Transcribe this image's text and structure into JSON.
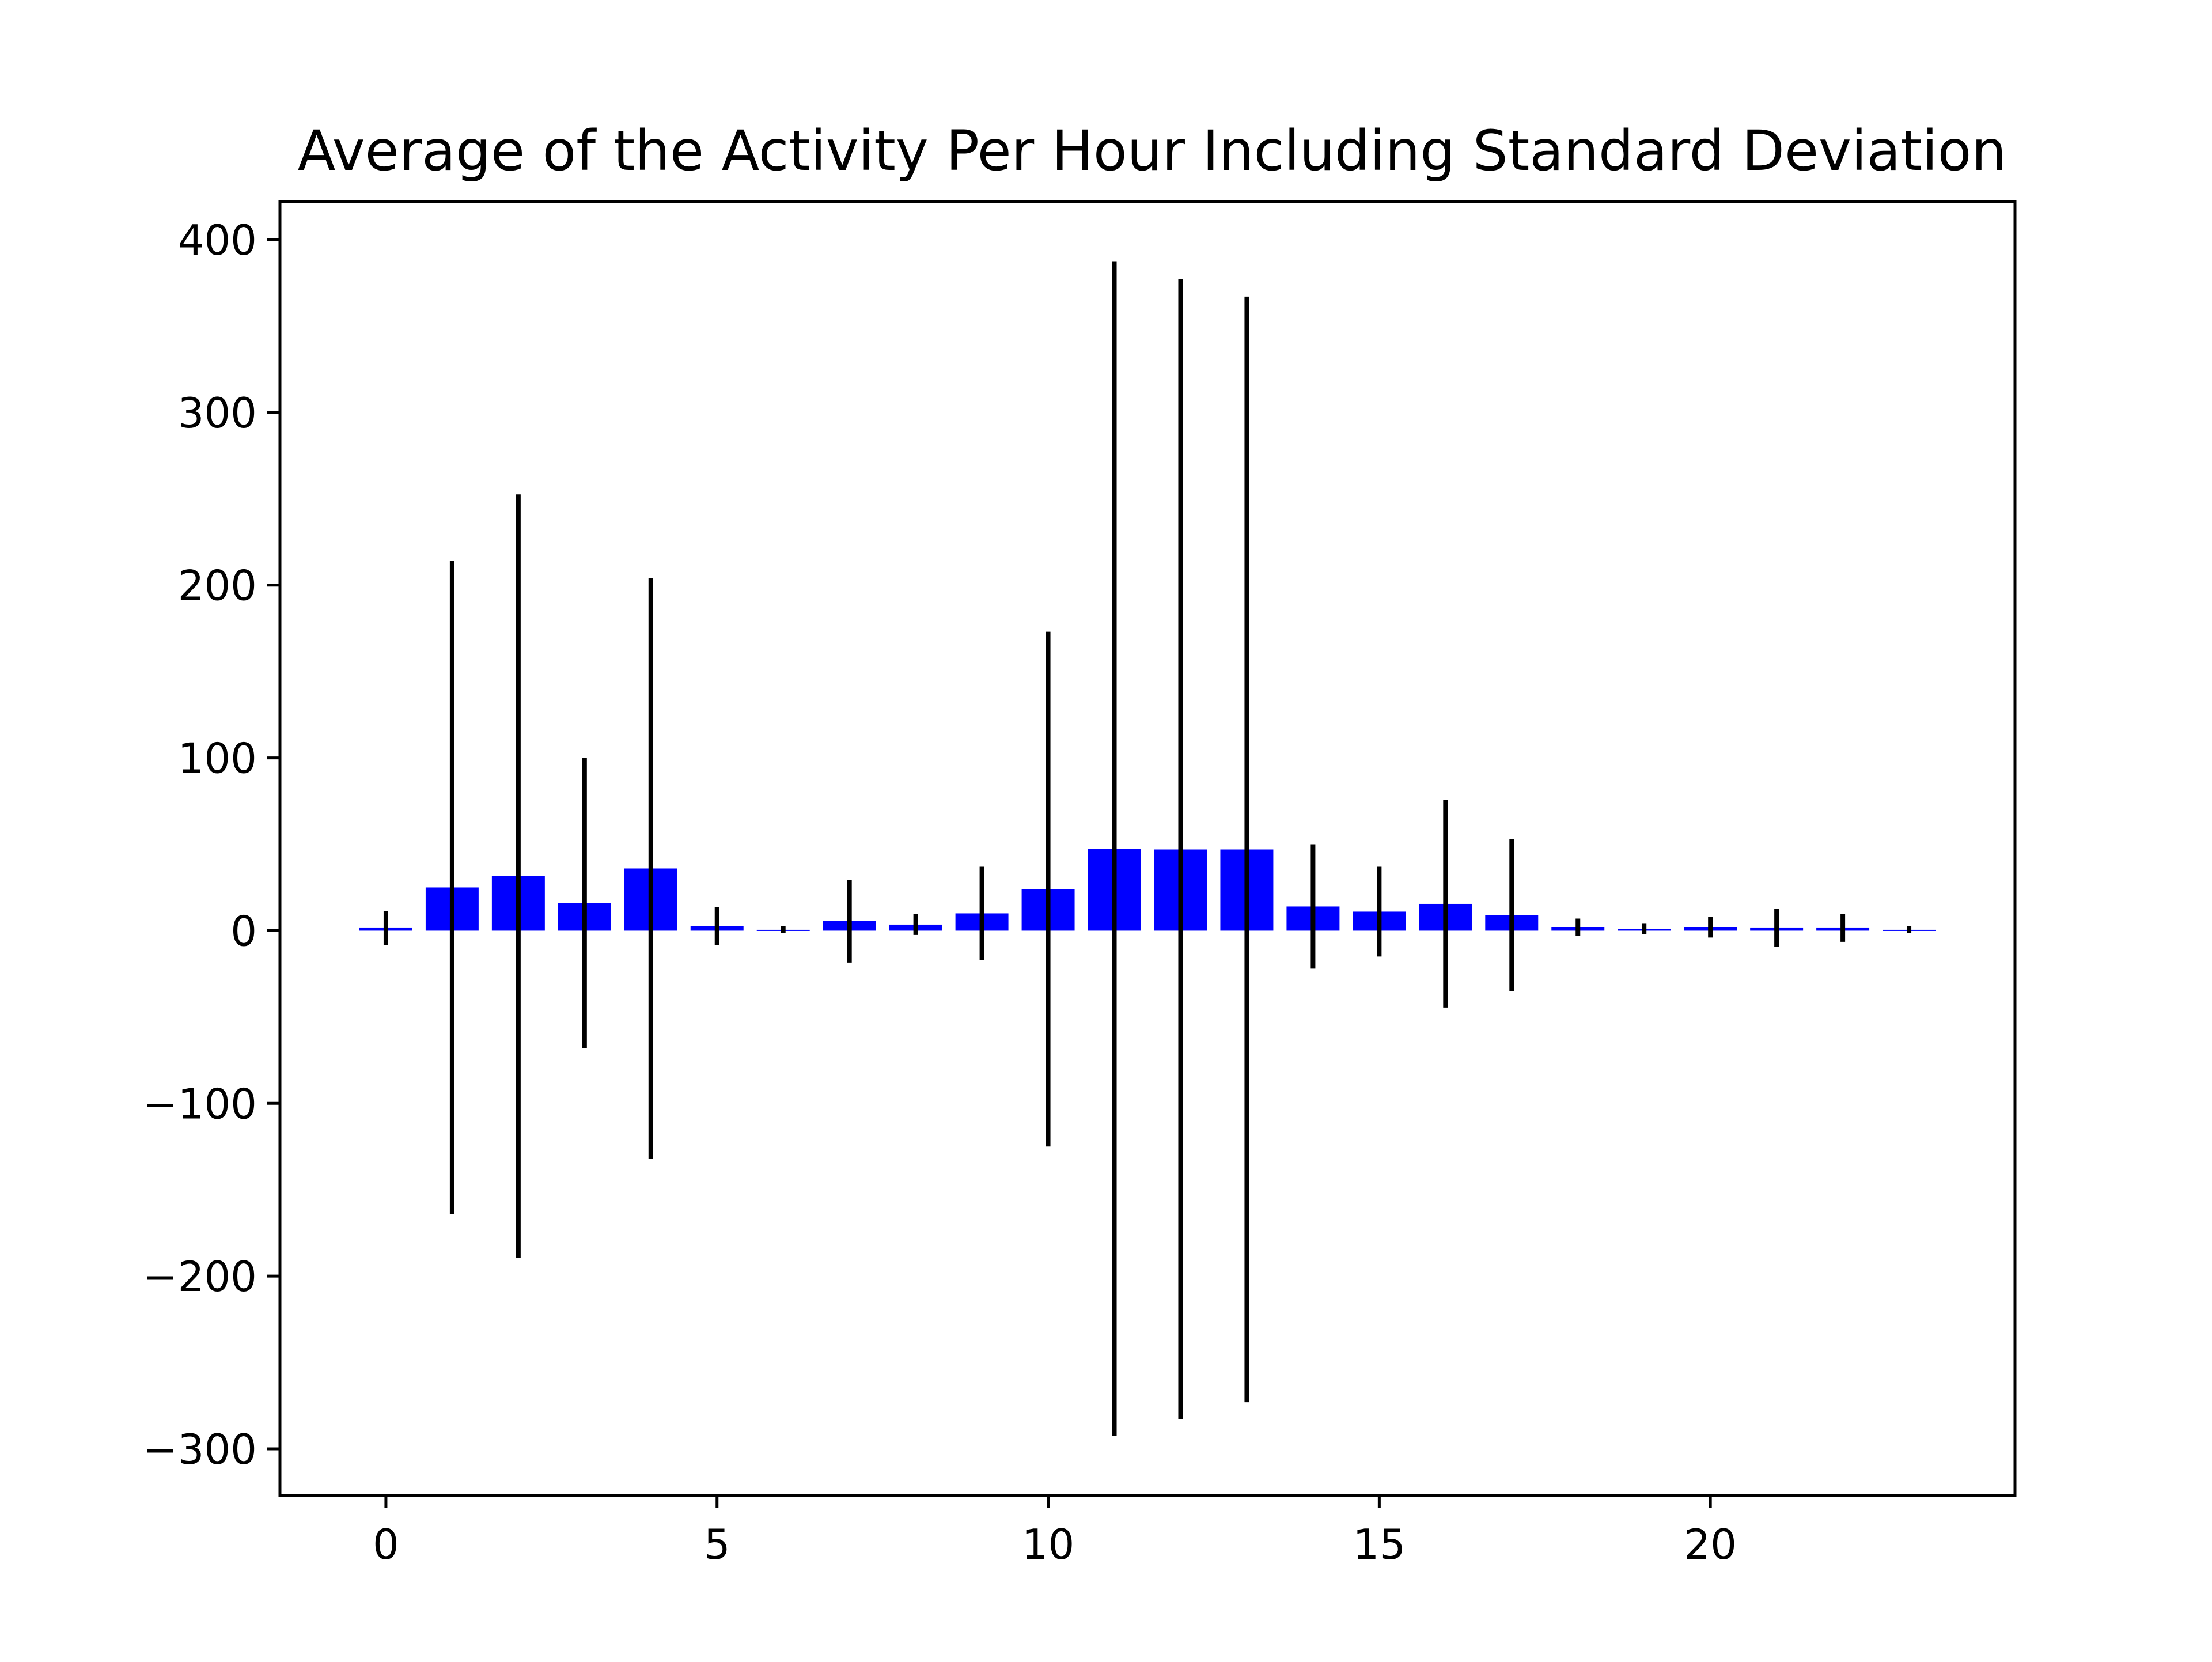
{
  "chart_data": {
    "type": "bar",
    "title": "Average of the Activity Per Hour Including Standard Deviation",
    "xlabel": "",
    "ylabel": "",
    "x": [
      0,
      1,
      2,
      3,
      4,
      5,
      6,
      7,
      8,
      9,
      10,
      11,
      12,
      13,
      14,
      15,
      16,
      17,
      18,
      19,
      20,
      21,
      22,
      23
    ],
    "values": [
      1.5,
      25,
      31.5,
      16,
      36,
      2.5,
      0.5,
      5.5,
      3.5,
      10,
      24,
      47.5,
      47,
      47,
      14,
      11,
      15.5,
      9,
      2,
      1,
      2,
      1.5,
      1.5,
      0.5
    ],
    "errors": [
      10,
      189,
      221,
      84,
      168,
      11,
      2,
      24,
      6,
      27,
      149,
      340,
      330,
      320,
      36,
      26,
      60,
      44,
      5,
      3,
      6,
      11,
      8,
      2
    ],
    "xlim": [
      -1.6,
      24.6
    ],
    "ylim": [
      -327,
      422
    ],
    "xticks": [
      0,
      5,
      10,
      15,
      20
    ],
    "xtick_labels": [
      "0",
      "5",
      "10",
      "15",
      "20"
    ],
    "yticks": [
      -300,
      -200,
      -100,
      0,
      100,
      200,
      300,
      400
    ],
    "ytick_labels": [
      "−300",
      "−200",
      "−100",
      "0",
      "100",
      "200",
      "300",
      "400"
    ],
    "bar_color": "#0000ff",
    "error_color": "#000000",
    "grid": false,
    "legend": "none"
  }
}
